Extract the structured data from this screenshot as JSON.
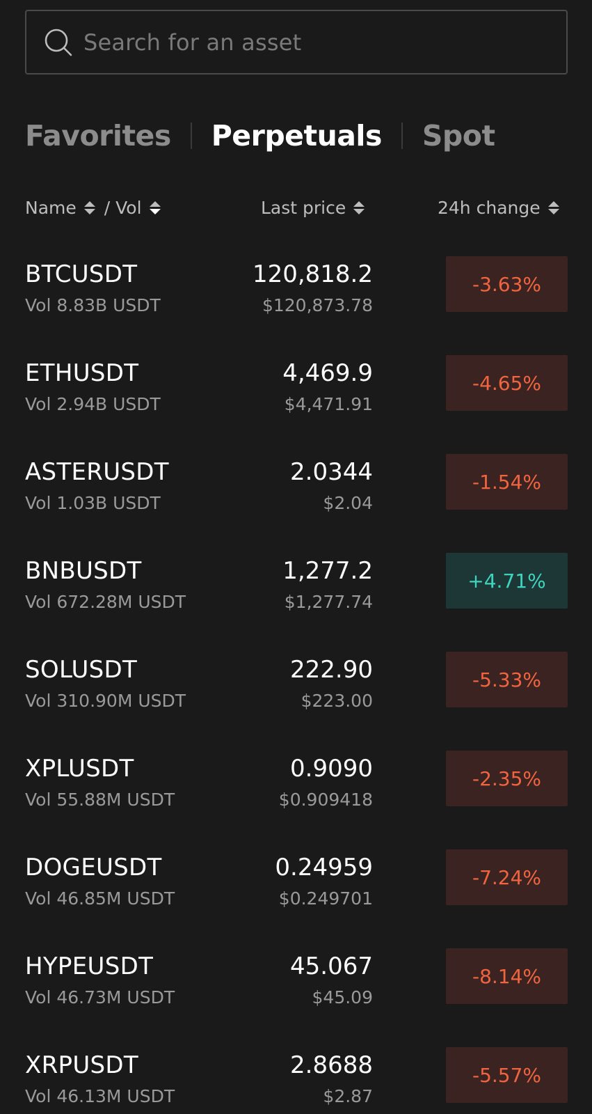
{
  "search": {
    "placeholder": "Search for an asset",
    "value": ""
  },
  "tabs": [
    {
      "label": "Favorites",
      "active": false
    },
    {
      "label": "Perpetuals",
      "active": true
    },
    {
      "label": "Spot",
      "active": false
    }
  ],
  "columns": {
    "name": "Name",
    "vol": "/ Vol",
    "last_price": "Last price",
    "change": "24h change"
  },
  "colors": {
    "negative": "#f0643f",
    "positive": "#3fd4bd",
    "background": "#1a1a1a"
  },
  "rows": [
    {
      "symbol": "BTCUSDT",
      "volume": "Vol 8.83B USDT",
      "price": "120,818.2",
      "usd": "$120,873.78",
      "change": "-3.63%",
      "direction": "neg"
    },
    {
      "symbol": "ETHUSDT",
      "volume": "Vol 2.94B USDT",
      "price": "4,469.9",
      "usd": "$4,471.91",
      "change": "-4.65%",
      "direction": "neg"
    },
    {
      "symbol": "ASTERUSDT",
      "volume": "Vol 1.03B USDT",
      "price": "2.0344",
      "usd": "$2.04",
      "change": "-1.54%",
      "direction": "neg"
    },
    {
      "symbol": "BNBUSDT",
      "volume": "Vol 672.28M USDT",
      "price": "1,277.2",
      "usd": "$1,277.74",
      "change": "+4.71%",
      "direction": "pos"
    },
    {
      "symbol": "SOLUSDT",
      "volume": "Vol 310.90M USDT",
      "price": "222.90",
      "usd": "$223.00",
      "change": "-5.33%",
      "direction": "neg"
    },
    {
      "symbol": "XPLUSDT",
      "volume": "Vol 55.88M USDT",
      "price": "0.9090",
      "usd": "$0.909418",
      "change": "-2.35%",
      "direction": "neg"
    },
    {
      "symbol": "DOGEUSDT",
      "volume": "Vol 46.85M USDT",
      "price": "0.24959",
      "usd": "$0.249701",
      "change": "-7.24%",
      "direction": "neg"
    },
    {
      "symbol": "HYPEUSDT",
      "volume": "Vol 46.73M USDT",
      "price": "45.067",
      "usd": "$45.09",
      "change": "-8.14%",
      "direction": "neg"
    },
    {
      "symbol": "XRPUSDT",
      "volume": "Vol 46.13M USDT",
      "price": "2.8688",
      "usd": "$2.87",
      "change": "-5.57%",
      "direction": "neg"
    }
  ]
}
